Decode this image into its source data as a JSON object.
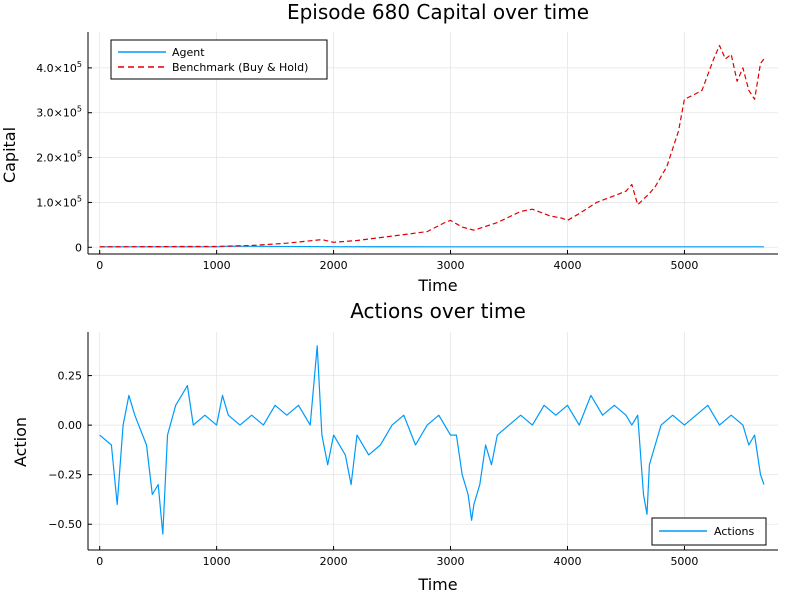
{
  "chart_data": [
    {
      "type": "line",
      "title": "Episode 680 Capital over time",
      "xlabel": "Time",
      "ylabel": "Capital",
      "xlim": [
        -100,
        5800
      ],
      "ylim": [
        -15000,
        480000
      ],
      "xticks": [
        0,
        1000,
        2000,
        3000,
        4000,
        5000
      ],
      "xtick_labels": [
        "0",
        "1000",
        "2000",
        "3000",
        "4000",
        "5000"
      ],
      "yticks": [
        0,
        100000,
        200000,
        300000,
        400000
      ],
      "ytick_labels": [
        {
          "mantissa": "0",
          "exp": ""
        },
        {
          "mantissa": "1.0×10",
          "exp": "5"
        },
        {
          "mantissa": "2.0×10",
          "exp": "5"
        },
        {
          "mantissa": "3.0×10",
          "exp": "5"
        },
        {
          "mantissa": "4.0×10",
          "exp": "5"
        }
      ],
      "grid": true,
      "legend_position": "top-left",
      "series": [
        {
          "name": "Agent",
          "color": "#009af9",
          "style": "solid",
          "x": [
            0,
            1000,
            1100,
            2000,
            3000,
            4000,
            5000,
            5680
          ],
          "y": [
            1000,
            1000,
            2500,
            1200,
            1000,
            1000,
            1000,
            1000
          ]
        },
        {
          "name": "Benchmark (Buy & Hold)",
          "color": "#e00000",
          "style": "dashed",
          "x": [
            0,
            500,
            1000,
            1300,
            1600,
            1900,
            2000,
            2200,
            2500,
            2800,
            2950,
            3000,
            3100,
            3200,
            3400,
            3600,
            3700,
            3850,
            3950,
            4000,
            4100,
            4250,
            4400,
            4500,
            4550,
            4600,
            4700,
            4750,
            4850,
            4950,
            5000,
            5080,
            5150,
            5250,
            5300,
            5350,
            5400,
            5450,
            5500,
            5550,
            5600,
            5650,
            5680
          ],
          "y": [
            1000,
            1500,
            2000,
            4000,
            9000,
            17000,
            11000,
            15000,
            25000,
            35000,
            55000,
            60000,
            45000,
            38000,
            55000,
            80000,
            85000,
            70000,
            65000,
            60000,
            75000,
            100000,
            115000,
            125000,
            140000,
            95000,
            120000,
            135000,
            180000,
            260000,
            330000,
            340000,
            350000,
            420000,
            450000,
            420000,
            430000,
            370000,
            400000,
            350000,
            330000,
            410000,
            420000
          ]
        }
      ]
    },
    {
      "type": "line",
      "title": "Actions over time",
      "xlabel": "Time",
      "ylabel": "Action",
      "xlim": [
        -100,
        5800
      ],
      "ylim": [
        -0.63,
        0.47
      ],
      "xticks": [
        0,
        1000,
        2000,
        3000,
        4000,
        5000
      ],
      "xtick_labels": [
        "0",
        "1000",
        "2000",
        "3000",
        "4000",
        "5000"
      ],
      "yticks": [
        0.25,
        0,
        -0.25,
        -0.5
      ],
      "ytick_labels": [
        "0.25",
        "0.00",
        "−0.25",
        "−0.50"
      ],
      "grid": true,
      "legend_position": "bottom-right",
      "series": [
        {
          "name": "Actions",
          "color": "#009af9",
          "style": "solid",
          "x": [
            0,
            100,
            150,
            200,
            250,
            300,
            400,
            450,
            500,
            540,
            580,
            650,
            700,
            750,
            800,
            900,
            1000,
            1050,
            1100,
            1200,
            1300,
            1400,
            1500,
            1600,
            1700,
            1800,
            1860,
            1900,
            1950,
            2000,
            2100,
            2150,
            2200,
            2300,
            2400,
            2500,
            2600,
            2700,
            2800,
            2900,
            3000,
            3050,
            3100,
            3150,
            3180,
            3200,
            3250,
            3300,
            3350,
            3400,
            3500,
            3600,
            3700,
            3800,
            3900,
            4000,
            4100,
            4200,
            4300,
            4400,
            4500,
            4550,
            4600,
            4650,
            4680,
            4700,
            4750,
            4800,
            4900,
            5000,
            5100,
            5200,
            5300,
            5400,
            5500,
            5550,
            5600,
            5650,
            5680
          ],
          "y": [
            -0.05,
            -0.1,
            -0.4,
            0.0,
            0.15,
            0.05,
            -0.1,
            -0.35,
            -0.3,
            -0.55,
            -0.05,
            0.1,
            0.15,
            0.2,
            0.0,
            0.05,
            0.0,
            0.15,
            0.05,
            0.0,
            0.05,
            0.0,
            0.1,
            0.05,
            0.1,
            0.0,
            0.4,
            -0.05,
            -0.2,
            -0.05,
            -0.15,
            -0.3,
            -0.05,
            -0.15,
            -0.1,
            0.0,
            0.05,
            -0.1,
            0.0,
            0.05,
            -0.05,
            -0.05,
            -0.25,
            -0.35,
            -0.48,
            -0.4,
            -0.3,
            -0.1,
            -0.2,
            -0.05,
            0.0,
            0.05,
            0.0,
            0.1,
            0.05,
            0.1,
            0.0,
            0.15,
            0.05,
            0.1,
            0.05,
            0.0,
            0.05,
            -0.35,
            -0.45,
            -0.2,
            -0.1,
            0.0,
            0.05,
            0.0,
            0.05,
            0.1,
            0.0,
            0.05,
            0.0,
            -0.1,
            -0.05,
            -0.25,
            -0.3
          ]
        }
      ]
    }
  ]
}
